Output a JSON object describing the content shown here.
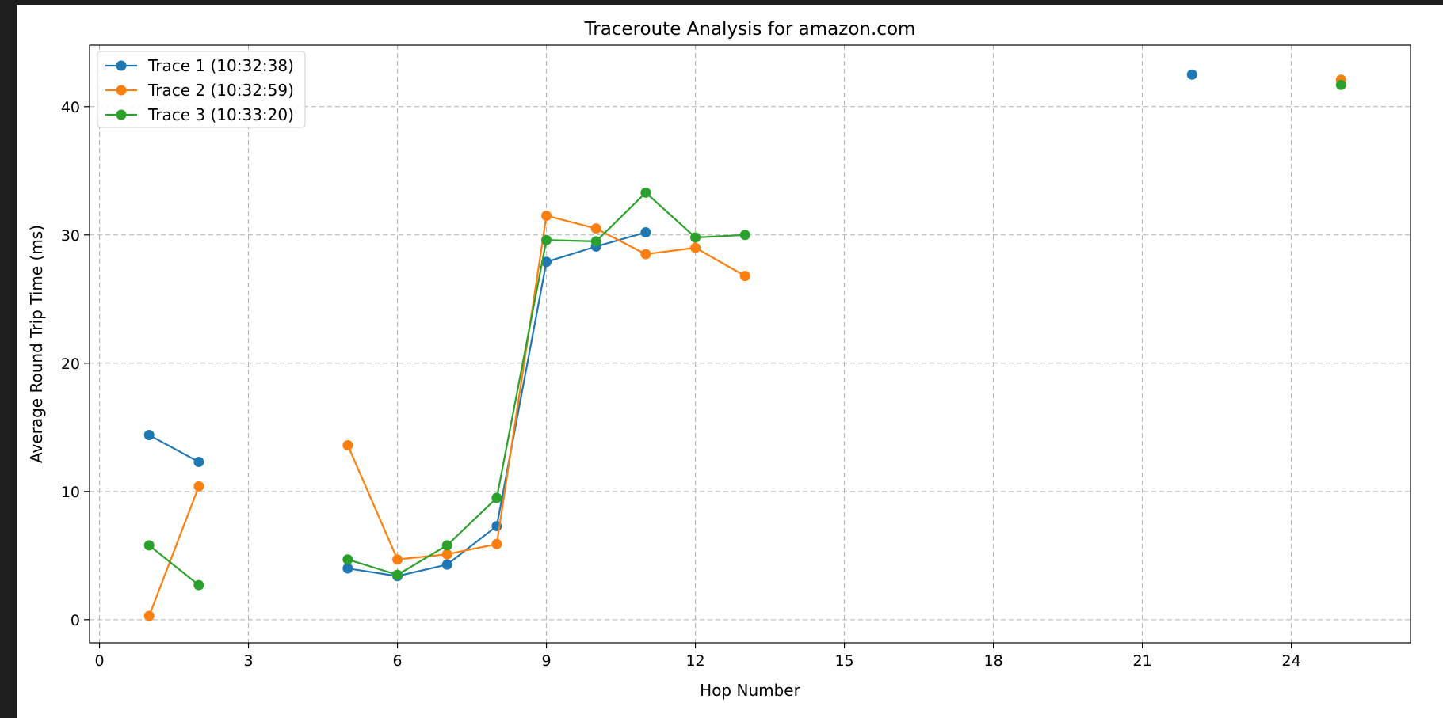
{
  "chart_data": {
    "type": "line",
    "title": "Traceroute Analysis for amazon.com",
    "xlabel": "Hop Number",
    "ylabel": "Average Round Trip Time (ms)",
    "xlim": [
      -0.2,
      26.4
    ],
    "ylim": [
      -1.8,
      44.8
    ],
    "xticks": [
      0,
      3,
      6,
      9,
      12,
      15,
      18,
      21,
      24
    ],
    "yticks": [
      0,
      10,
      20,
      30,
      40
    ],
    "grid": true,
    "legend_position": "top-left",
    "series": [
      {
        "name": "Trace 1 (10:32:38)",
        "color": "#1f77b4",
        "points": [
          [
            1,
            14.4
          ],
          [
            2,
            12.3
          ],
          [
            3,
            null
          ],
          [
            4,
            null
          ],
          [
            5,
            4.0
          ],
          [
            6,
            3.4
          ],
          [
            7,
            4.3
          ],
          [
            8,
            7.3
          ],
          [
            9,
            27.9
          ],
          [
            10,
            29.1
          ],
          [
            11,
            30.2
          ],
          [
            12,
            null
          ],
          [
            22,
            42.5
          ]
        ]
      },
      {
        "name": "Trace 2 (10:32:59)",
        "color": "#ff7f0e",
        "points": [
          [
            1,
            0.3
          ],
          [
            2,
            10.4
          ],
          [
            3,
            null
          ],
          [
            4,
            null
          ],
          [
            5,
            13.6
          ],
          [
            6,
            4.7
          ],
          [
            7,
            5.1
          ],
          [
            8,
            5.9
          ],
          [
            9,
            31.5
          ],
          [
            10,
            30.5
          ],
          [
            11,
            28.5
          ],
          [
            12,
            29.0
          ],
          [
            13,
            26.8
          ],
          [
            14,
            null
          ],
          [
            25,
            42.1
          ]
        ]
      },
      {
        "name": "Trace 3 (10:33:20)",
        "color": "#2ca02c",
        "points": [
          [
            1,
            5.8
          ],
          [
            2,
            2.7
          ],
          [
            3,
            null
          ],
          [
            4,
            null
          ],
          [
            5,
            4.7
          ],
          [
            6,
            3.5
          ],
          [
            7,
            5.8
          ],
          [
            8,
            9.5
          ],
          [
            9,
            29.6
          ],
          [
            10,
            29.5
          ],
          [
            11,
            33.3
          ],
          [
            12,
            29.8
          ],
          [
            13,
            30.0
          ],
          [
            14,
            null
          ],
          [
            25,
            41.7
          ]
        ]
      }
    ]
  }
}
